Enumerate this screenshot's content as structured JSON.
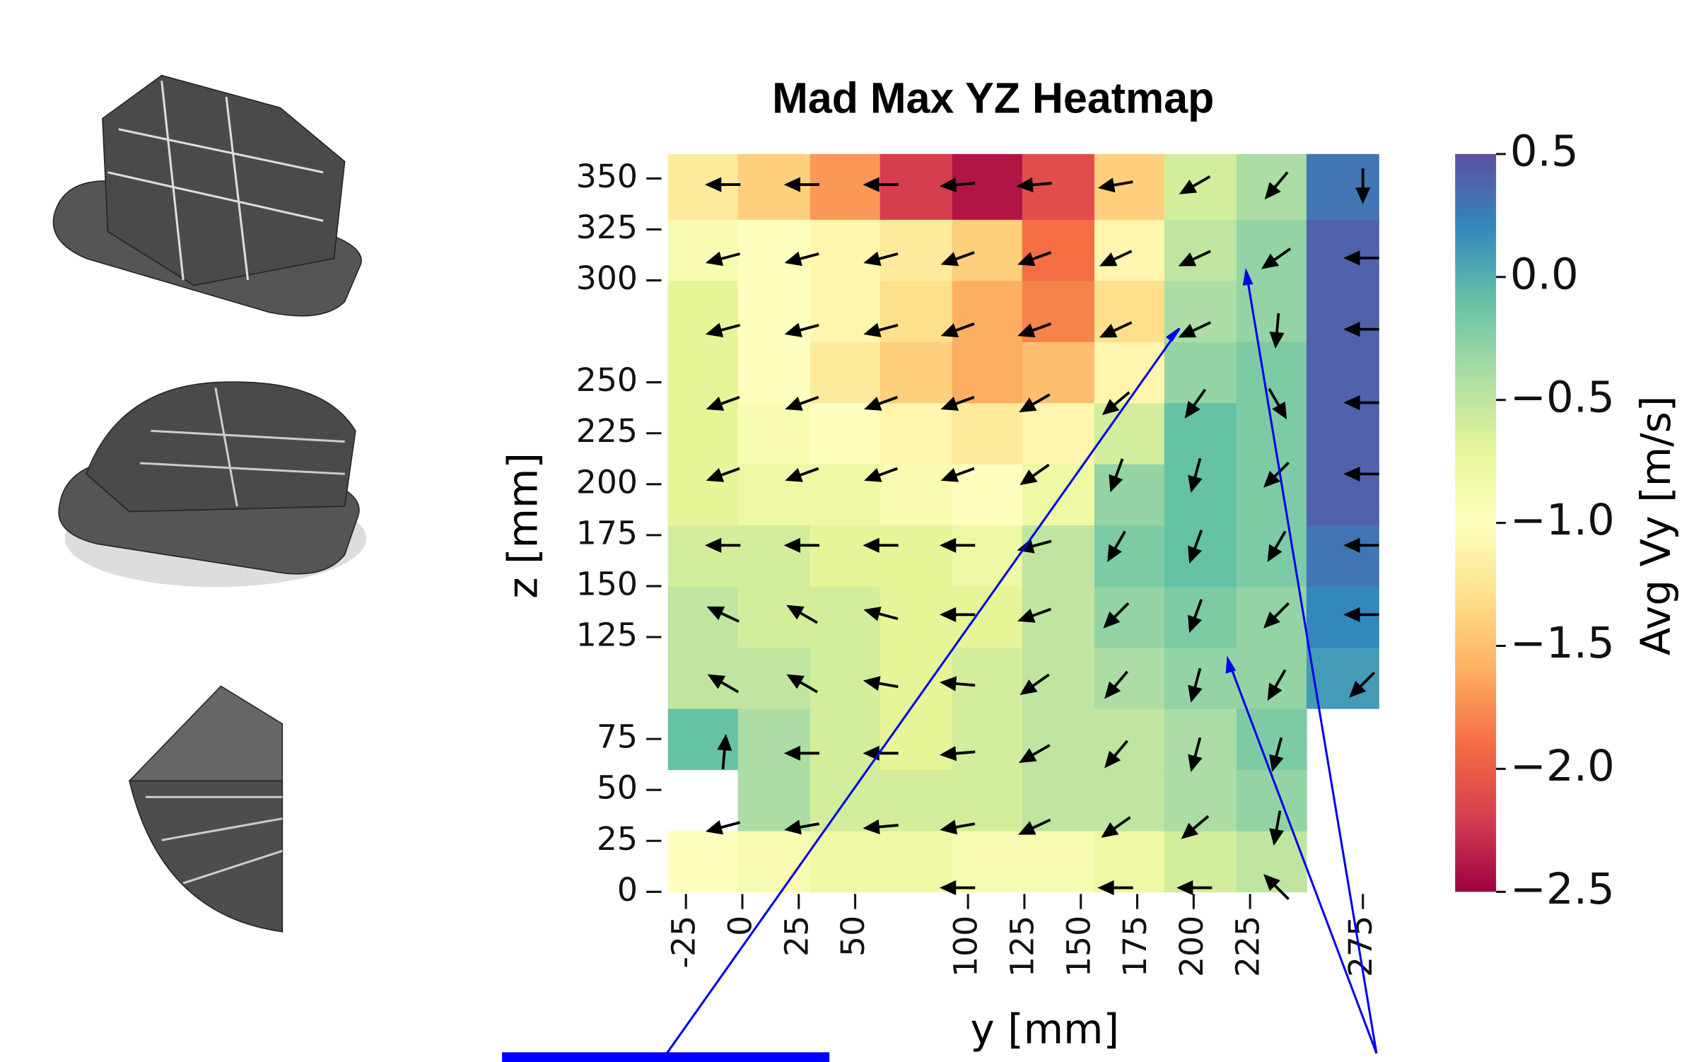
{
  "chart_data": {
    "type": "heatmap",
    "title": "Mad Max YZ Heatmap",
    "xlabel": "y [mm]",
    "ylabel": "z [mm]",
    "colorbar_label": "Avg Vy [m/s]",
    "colormap": "Spectral",
    "xlim": [
      -33,
      282
    ],
    "ylim": [
      0,
      362
    ],
    "xticks": [
      -25,
      0,
      25,
      50,
      100,
      125,
      150,
      175,
      200,
      225,
      275
    ],
    "yticks": [
      0,
      25,
      50,
      75,
      125,
      150,
      175,
      200,
      225,
      250,
      300,
      325,
      350
    ],
    "clim": [
      -2.5,
      0.5
    ],
    "cticks": [
      0.5,
      {
        "value": 0,
        "label": "0.0"
      },
      {
        "value": -0.5,
        "label": "−0.5"
      },
      {
        "value": -1,
        "label": "−1.0"
      },
      {
        "value": -1.5,
        "label": "−1.5"
      },
      {
        "value": -2,
        "label": "−2.0"
      },
      {
        "value": -2.5,
        "label": "−2.5"
      }
    ],
    "xbins": [
      -33,
      -2,
      30,
      61,
      93,
      124,
      156,
      187,
      219,
      250,
      282
    ],
    "ybins": [
      0,
      30,
      60,
      90,
      120,
      150,
      180,
      210,
      240,
      270,
      300,
      330,
      362
    ],
    "values": [
      [
        -1.0,
        -0.9,
        -0.8,
        -0.8,
        -0.9,
        -0.9,
        -0.8,
        -0.6,
        -0.5,
        null
      ],
      [
        null,
        -0.4,
        -0.6,
        -0.6,
        -0.6,
        -0.5,
        -0.5,
        -0.4,
        -0.3,
        null
      ],
      [
        -0.1,
        -0.4,
        -0.6,
        -0.7,
        -0.6,
        -0.5,
        -0.5,
        -0.4,
        -0.2,
        null
      ],
      [
        -0.5,
        -0.5,
        -0.6,
        -0.7,
        -0.6,
        -0.5,
        -0.4,
        -0.3,
        -0.3,
        0.1
      ],
      [
        -0.5,
        -0.6,
        -0.6,
        -0.7,
        -0.7,
        -0.5,
        -0.3,
        -0.2,
        -0.3,
        0.2
      ],
      [
        -0.6,
        -0.6,
        -0.7,
        -0.7,
        -0.8,
        -0.5,
        -0.2,
        -0.1,
        -0.2,
        0.3
      ],
      [
        -0.7,
        -0.8,
        -0.8,
        -0.9,
        -1.0,
        -0.8,
        -0.3,
        -0.1,
        -0.2,
        0.4
      ],
      [
        -0.7,
        -0.9,
        -1.0,
        -1.1,
        -1.2,
        -1.1,
        -0.6,
        -0.1,
        -0.2,
        0.4
      ],
      [
        -0.7,
        -1.0,
        -1.2,
        -1.4,
        -1.6,
        -1.5,
        -1.1,
        -0.3,
        -0.2,
        0.4
      ],
      [
        -0.7,
        -1.0,
        -1.1,
        -1.3,
        -1.6,
        -1.8,
        -1.3,
        -0.4,
        -0.3,
        0.4
      ],
      [
        -0.9,
        -1.0,
        -1.1,
        -1.2,
        -1.4,
        -1.9,
        -1.1,
        -0.5,
        -0.3,
        0.4
      ],
      [
        -1.2,
        -1.4,
        -1.7,
        -2.2,
        -2.4,
        -2.1,
        -1.4,
        -0.6,
        -0.4,
        0.3
      ]
    ],
    "quiver": {
      "y": [
        -8,
        27,
        62,
        96,
        130,
        166,
        201,
        237,
        275
      ],
      "z": [
        347,
        311,
        276,
        240,
        205,
        170,
        136,
        102,
        68,
        32,
        2
      ],
      "angle": [
        [
          180,
          180,
          180,
          185,
          185,
          190,
          210,
          230,
          270
        ],
        [
          195,
          195,
          195,
          200,
          200,
          205,
          205,
          215,
          180
        ],
        [
          195,
          195,
          195,
          200,
          200,
          205,
          205,
          265,
          180
        ],
        [
          200,
          200,
          200,
          200,
          210,
          220,
          235,
          300,
          180
        ],
        [
          200,
          200,
          200,
          200,
          215,
          250,
          255,
          225,
          180
        ],
        [
          180,
          180,
          180,
          180,
          195,
          240,
          250,
          240,
          180
        ],
        [
          155,
          150,
          165,
          180,
          200,
          225,
          250,
          225,
          180
        ],
        [
          150,
          150,
          170,
          175,
          215,
          230,
          255,
          240,
          225
        ],
        [
          85,
          180,
          180,
          185,
          210,
          230,
          255,
          255,
          null
        ],
        [
          195,
          190,
          185,
          190,
          205,
          215,
          220,
          260,
          null
        ],
        [
          null,
          null,
          null,
          180,
          null,
          180,
          180,
          135,
          null
        ]
      ]
    }
  }
}
